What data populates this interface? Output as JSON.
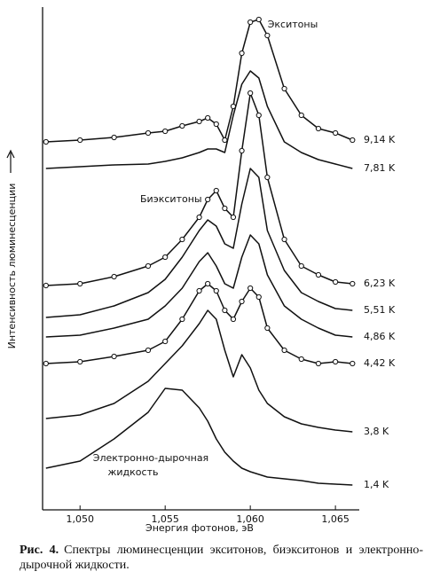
{
  "chart_data": {
    "type": "line",
    "y_label": "Интенсивность люминесценции",
    "x_label": "Энергия фотонов, эВ",
    "x": [
      1.048,
      1.05,
      1.052,
      1.054,
      1.055,
      1.056,
      1.057,
      1.0575,
      1.058,
      1.0585,
      1.059,
      1.0595,
      1.06,
      1.0605,
      1.061,
      1.062,
      1.063,
      1.064,
      1.065,
      1.066
    ],
    "xlim": [
      1.0478,
      1.0664
    ],
    "xticks": [
      {
        "value": 1.05,
        "label": "1,050"
      },
      {
        "value": 1.055,
        "label": "1,055"
      },
      {
        "value": 1.06,
        "label": "1,060"
      },
      {
        "value": 1.065,
        "label": "1,065"
      }
    ],
    "ylim": [
      0,
      567
    ],
    "grid": false,
    "color": "#111111",
    "series": [
      {
        "name": "9,14 K",
        "markers": true,
        "values": [
          415,
          417,
          420,
          425,
          427,
          433,
          438,
          442,
          435,
          417,
          455,
          515,
          550,
          553,
          535,
          475,
          445,
          430,
          425,
          417
        ]
      },
      {
        "name": "7,81 K",
        "markers": false,
        "values": [
          385,
          387,
          389,
          390,
          393,
          397,
          403,
          407,
          407,
          403,
          445,
          480,
          495,
          487,
          455,
          415,
          403,
          395,
          390,
          385
        ]
      },
      {
        "name": "6,23 K",
        "markers": true,
        "values": [
          253,
          255,
          263,
          275,
          285,
          305,
          330,
          350,
          360,
          340,
          330,
          405,
          470,
          445,
          375,
          305,
          275,
          265,
          257,
          255
        ]
      },
      {
        "name": "5,51 K",
        "markers": false,
        "values": [
          217,
          220,
          230,
          245,
          260,
          285,
          315,
          327,
          320,
          300,
          295,
          345,
          385,
          375,
          315,
          270,
          245,
          235,
          227,
          225
        ]
      },
      {
        "name": "4,86 K",
        "markers": false,
        "values": [
          195,
          197,
          205,
          215,
          230,
          250,
          280,
          290,
          275,
          255,
          250,
          285,
          310,
          300,
          265,
          230,
          215,
          205,
          197,
          195
        ]
      },
      {
        "name": "4,42 K",
        "markers": true,
        "values": [
          165,
          167,
          173,
          180,
          190,
          215,
          247,
          255,
          247,
          225,
          215,
          235,
          250,
          240,
          205,
          180,
          170,
          165,
          167,
          165
        ]
      },
      {
        "name": "3,8 K",
        "markers": false,
        "values": [
          103,
          107,
          120,
          145,
          165,
          185,
          210,
          225,
          215,
          180,
          150,
          175,
          160,
          135,
          120,
          105,
          97,
          93,
          90,
          88
        ]
      },
      {
        "name": "1,4 K",
        "markers": false,
        "values": [
          47,
          55,
          80,
          110,
          137,
          135,
          115,
          100,
          80,
          65,
          55,
          47,
          43,
          40,
          37,
          35,
          33,
          30,
          29,
          28
        ]
      }
    ],
    "annotations": [
      "Экситоны",
      "Биэкситоны",
      "Электронно-дырочная",
      "жидкость"
    ]
  },
  "caption": {
    "label": "Рис. 4.",
    "text": "Спектры люминесценции экситонов, биэкситонов и электронно-дырочной жидкости."
  }
}
